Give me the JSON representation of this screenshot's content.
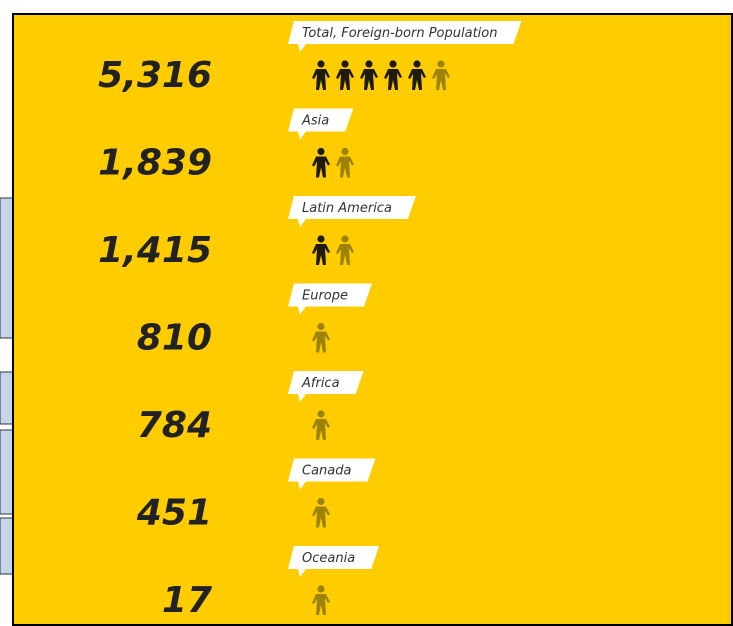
{
  "chart_data": {
    "type": "pictogram",
    "categories": [
      "Total, Foreign-born Population",
      "Asia",
      "Latin America",
      "Europe",
      "Africa",
      "Canada",
      "Oceania"
    ],
    "values": [
      5316,
      1839,
      1415,
      810,
      784,
      451,
      17
    ],
    "value_labels": [
      "5,316",
      "1,839",
      "1,415",
      "810",
      "784",
      "451",
      "17"
    ],
    "color": "#1e1a0c",
    "partial_color": "#9c8308",
    "background": "#ffcc00"
  }
}
